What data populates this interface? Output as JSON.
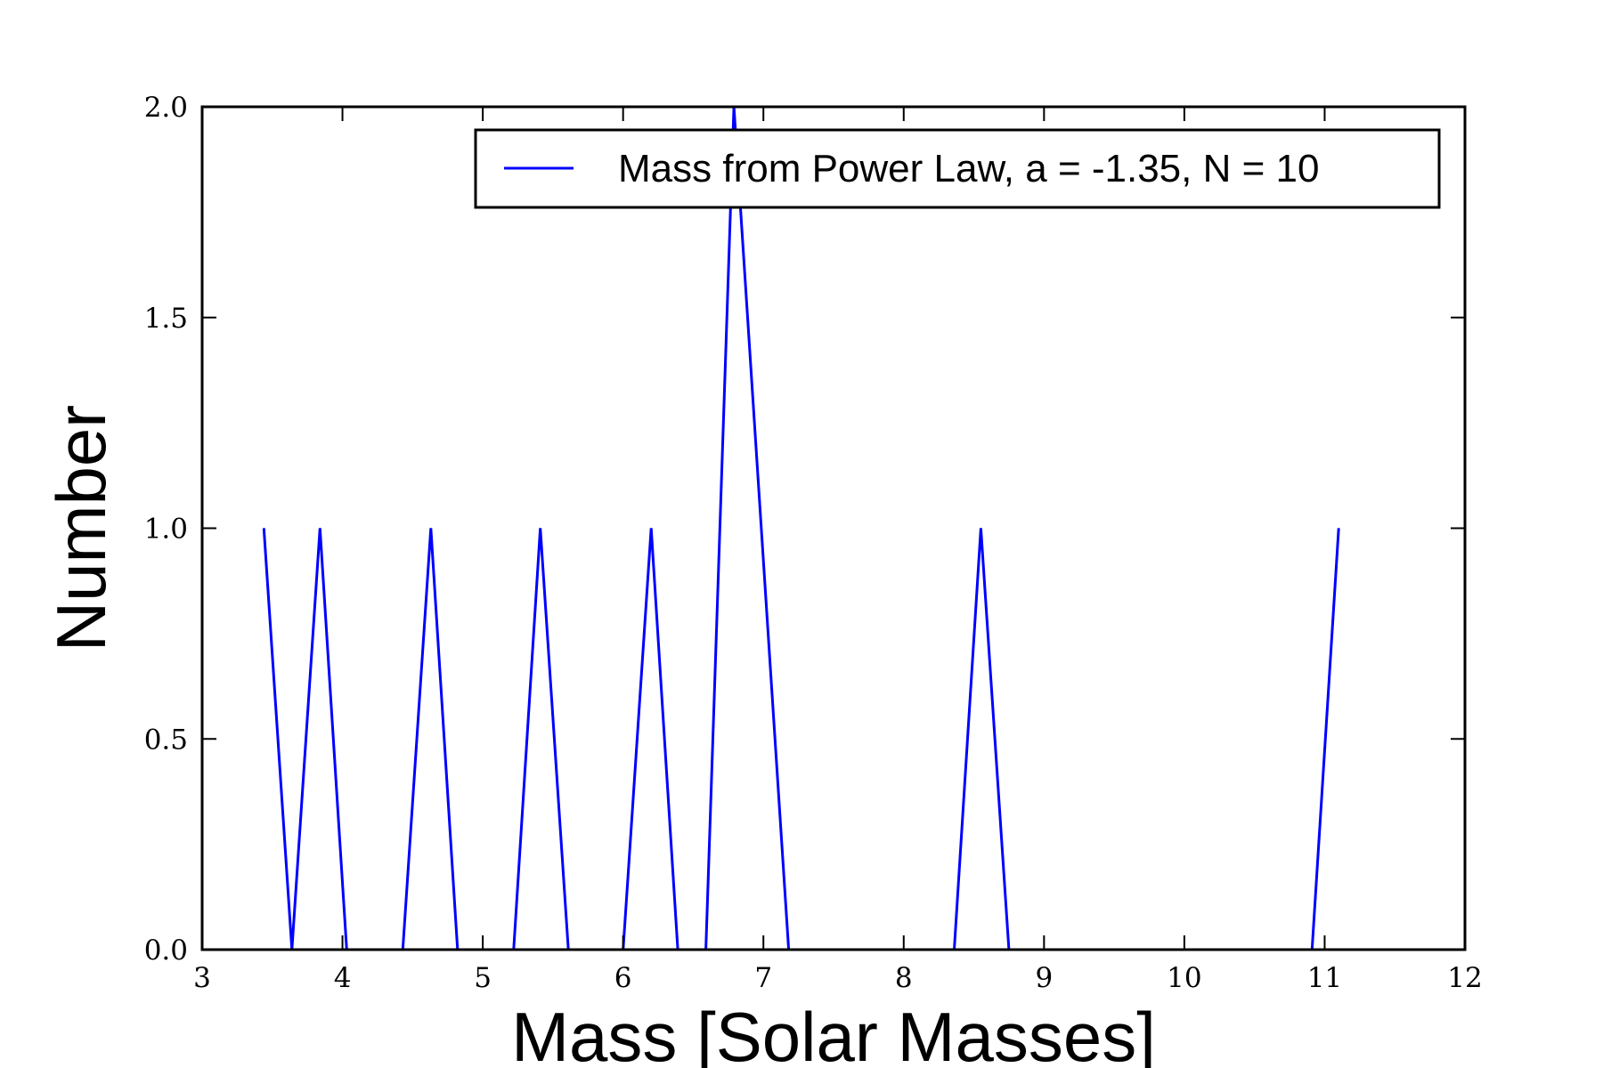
{
  "chart_data": {
    "type": "line",
    "xlabel": "Mass [Solar Masses]",
    "ylabel": "Number",
    "xlim": [
      3,
      12
    ],
    "ylim": [
      0.0,
      2.0
    ],
    "xticks": [
      3,
      4,
      5,
      6,
      7,
      8,
      9,
      10,
      11,
      12
    ],
    "xtick_labels": [
      "3",
      "4",
      "5",
      "6",
      "7",
      "8",
      "9",
      "10",
      "11",
      "12"
    ],
    "yticks": [
      0.0,
      0.5,
      1.0,
      1.5,
      2.0
    ],
    "ytick_labels": [
      "0.0",
      "0.5",
      "1.0",
      "1.5",
      "2.0"
    ],
    "grid": false,
    "legend_position": "top-right",
    "series": [
      {
        "name": "Mass from Power Law, a = -1.35, N = 10",
        "color": "#0000ff",
        "x": [
          3.44,
          3.64,
          3.84,
          4.03,
          4.43,
          4.63,
          4.82,
          5.22,
          5.41,
          5.61,
          6.0,
          6.2,
          6.39,
          6.59,
          6.79,
          7.18,
          8.36,
          8.55,
          8.75,
          10.91,
          11.1
        ],
        "y": [
          1,
          0,
          1,
          0,
          0,
          1,
          0,
          0,
          1,
          0,
          0,
          1,
          0,
          0,
          2,
          0,
          0,
          1,
          0,
          0,
          1
        ]
      }
    ]
  }
}
